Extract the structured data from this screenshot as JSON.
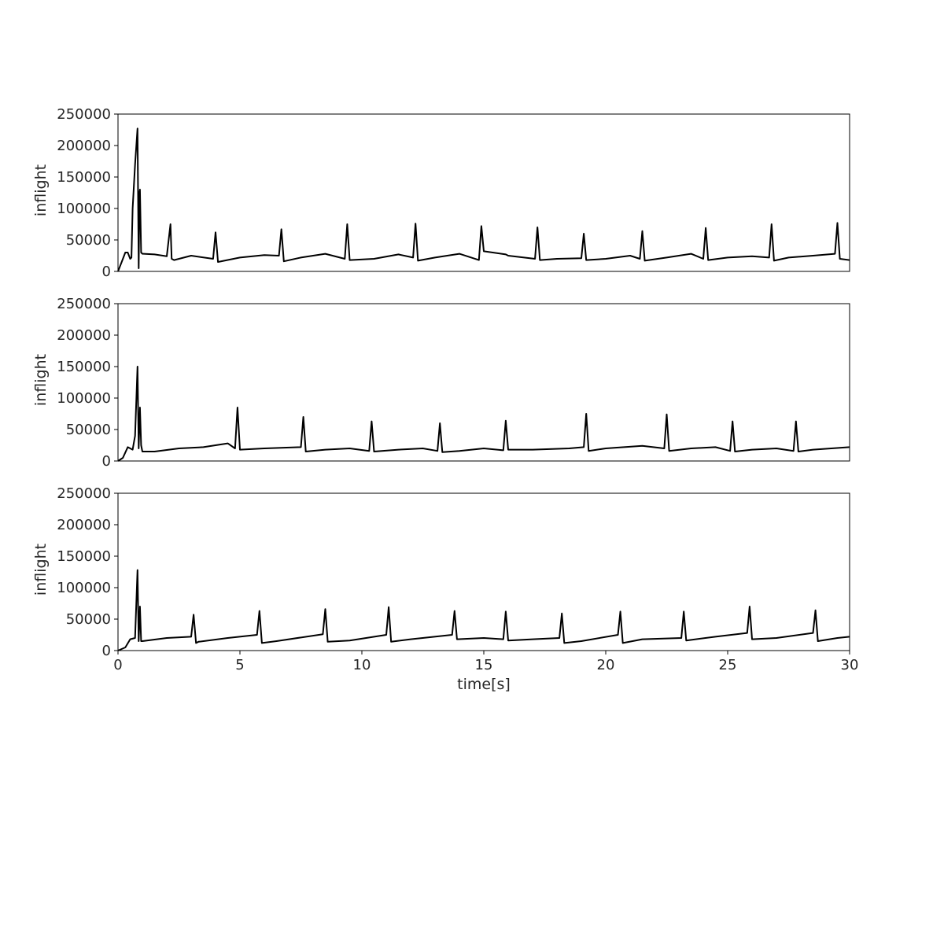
{
  "figure": {
    "xlabel": "time[s]"
  },
  "chart_data": [
    {
      "type": "line",
      "xlabel": "",
      "ylabel": "inflight",
      "xlim": [
        0,
        30
      ],
      "ylim": [
        0,
        250000
      ],
      "xticks": [],
      "yticks": [
        0,
        50000,
        100000,
        150000,
        200000,
        250000
      ],
      "ytick_labels": [
        "0",
        "50000",
        "100000",
        "150000",
        "200000",
        "250000"
      ],
      "grid": false,
      "series": [
        {
          "color": "#000000",
          "x": [
            0,
            0.15,
            0.3,
            0.4,
            0.5,
            0.55,
            0.6,
            0.7,
            0.8,
            0.85,
            0.88,
            0.9,
            0.95,
            1.0,
            1.05,
            1.5,
            2.0,
            2.15,
            2.2,
            2.3,
            3.0,
            3.9,
            4.0,
            4.1,
            5.0,
            6.0,
            6.6,
            6.7,
            6.8,
            7.5,
            8.5,
            9.3,
            9.4,
            9.5,
            10.5,
            11.5,
            12.1,
            12.2,
            12.3,
            13.0,
            14.0,
            14.8,
            14.9,
            15.0,
            15.9,
            16.0,
            17.1,
            17.2,
            17.3,
            18.0,
            19.0,
            19.1,
            19.2,
            20.0,
            21.0,
            21.4,
            21.5,
            21.6,
            22.5,
            23.5,
            24.0,
            24.1,
            24.2,
            25.0,
            26.0,
            26.7,
            26.8,
            26.9,
            27.5,
            28.5,
            29.4,
            29.5,
            29.6,
            30.0
          ],
          "y": [
            0,
            15000,
            30000,
            30000,
            20000,
            22000,
            100000,
            170000,
            227000,
            5000,
            125000,
            130000,
            30000,
            28000,
            28000,
            27000,
            24000,
            75000,
            20000,
            18000,
            25000,
            20000,
            62000,
            15000,
            22000,
            26000,
            25000,
            67000,
            16000,
            22000,
            28000,
            20000,
            75000,
            18000,
            20000,
            27000,
            22000,
            76000,
            17000,
            22000,
            28000,
            18000,
            72000,
            32000,
            27000,
            25000,
            20000,
            70000,
            18000,
            20000,
            21000,
            60000,
            18000,
            20000,
            25000,
            20000,
            64000,
            17000,
            22000,
            28000,
            20000,
            69000,
            18000,
            22000,
            24000,
            22000,
            75000,
            17000,
            22000,
            25000,
            28000,
            77000,
            20000,
            18000
          ]
        }
      ]
    },
    {
      "type": "line",
      "xlabel": "",
      "ylabel": "inflight",
      "xlim": [
        0,
        30
      ],
      "ylim": [
        0,
        250000
      ],
      "xticks": [],
      "yticks": [
        0,
        50000,
        100000,
        150000,
        200000,
        250000
      ],
      "ytick_labels": [
        "0",
        "50000",
        "100000",
        "150000",
        "200000",
        "250000"
      ],
      "grid": false,
      "series": [
        {
          "color": "#000000",
          "x": [
            0,
            0.2,
            0.4,
            0.6,
            0.7,
            0.8,
            0.85,
            0.9,
            0.95,
            1.0,
            1.5,
            2.5,
            3.5,
            4.5,
            4.8,
            4.9,
            5.0,
            6.0,
            7.5,
            7.6,
            7.7,
            8.5,
            9.5,
            10.3,
            10.4,
            10.5,
            11.5,
            12.5,
            13.1,
            13.2,
            13.3,
            14.0,
            15.0,
            15.8,
            15.9,
            16.0,
            17.0,
            18.5,
            19.1,
            19.2,
            19.3,
            20.0,
            21.5,
            22.4,
            22.5,
            22.6,
            23.5,
            24.5,
            25.1,
            25.2,
            25.3,
            26.0,
            27.0,
            27.7,
            27.8,
            27.9,
            28.5,
            30.0
          ],
          "y": [
            0,
            5000,
            22000,
            18000,
            40000,
            150000,
            20000,
            85000,
            25000,
            15000,
            15000,
            20000,
            22000,
            28000,
            20000,
            85000,
            18000,
            20000,
            22000,
            70000,
            15000,
            18000,
            20000,
            16000,
            63000,
            15000,
            18000,
            20000,
            16000,
            60000,
            14000,
            16000,
            20000,
            17000,
            64000,
            18000,
            18000,
            20000,
            22000,
            75000,
            16000,
            20000,
            24000,
            20000,
            74000,
            16000,
            20000,
            22000,
            16000,
            63000,
            15000,
            18000,
            20000,
            16000,
            63000,
            15000,
            18000,
            22000
          ]
        }
      ]
    },
    {
      "type": "line",
      "xlabel": "time[s]",
      "ylabel": "inflight",
      "xlim": [
        0,
        30
      ],
      "ylim": [
        0,
        250000
      ],
      "xticks": [
        0,
        5,
        10,
        15,
        20,
        25,
        30
      ],
      "xtick_labels": [
        "0",
        "5",
        "10",
        "15",
        "20",
        "25",
        "30"
      ],
      "yticks": [
        0,
        50000,
        100000,
        150000,
        200000,
        250000
      ],
      "ytick_labels": [
        "0",
        "50000",
        "100000",
        "150000",
        "200000",
        "250000"
      ],
      "grid": false,
      "series": [
        {
          "color": "#000000",
          "x": [
            0,
            0.3,
            0.5,
            0.7,
            0.8,
            0.85,
            0.9,
            0.95,
            1.0,
            2.0,
            3.0,
            3.1,
            3.2,
            3.3,
            4.5,
            5.7,
            5.8,
            5.9,
            6.5,
            8.4,
            8.5,
            8.6,
            9.5,
            11.0,
            11.1,
            11.2,
            12.0,
            13.7,
            13.8,
            13.9,
            15.0,
            15.8,
            15.9,
            16.0,
            17.0,
            18.1,
            18.2,
            18.3,
            19.0,
            20.5,
            20.6,
            20.7,
            21.5,
            23.1,
            23.2,
            23.3,
            24.5,
            25.8,
            25.9,
            26.0,
            27.0,
            28.5,
            28.6,
            28.7,
            29.5,
            30.0
          ],
          "y": [
            0,
            5000,
            18000,
            20000,
            128000,
            15000,
            70000,
            15000,
            15000,
            20000,
            22000,
            57000,
            12000,
            14000,
            20000,
            25000,
            63000,
            12000,
            15000,
            26000,
            66000,
            14000,
            16000,
            25000,
            69000,
            14000,
            18000,
            25000,
            63000,
            18000,
            20000,
            18000,
            62000,
            16000,
            18000,
            20000,
            59000,
            12000,
            15000,
            25000,
            62000,
            12000,
            18000,
            20000,
            62000,
            16000,
            22000,
            28000,
            70000,
            18000,
            20000,
            28000,
            64000,
            15000,
            20000,
            22000
          ]
        }
      ]
    }
  ]
}
